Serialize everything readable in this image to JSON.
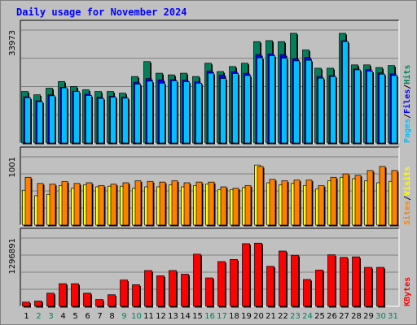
{
  "title": "Daily usage for November 2024",
  "colors": {
    "hits": "#00805c",
    "files": "#0000ff",
    "pages": "#00c0ff",
    "visits": "#ffff00",
    "sites": "#ff8000",
    "kbytes": "#ff0000",
    "weekday": "#000000",
    "weekend": "#00805c",
    "bg": "#c0c0c0"
  },
  "chart_data": [
    {
      "type": "bar",
      "panel": "top",
      "ytick_label": "33973",
      "ymax": 33973,
      "ylabel_parts": [
        "Pages",
        "Files",
        "Hits"
      ],
      "categories": [
        "1",
        "2",
        "3",
        "4",
        "5",
        "6",
        "7",
        "8",
        "9",
        "10",
        "11",
        "12",
        "13",
        "14",
        "15",
        "16",
        "17",
        "18",
        "19",
        "20",
        "21",
        "22",
        "23",
        "24",
        "25",
        "26",
        "27",
        "28",
        "29",
        "30",
        "31"
      ],
      "series": [
        {
          "name": "Hits",
          "values": [
            15500,
            14500,
            16500,
            18500,
            17000,
            16000,
            15500,
            15500,
            15000,
            20000,
            24500,
            21000,
            20500,
            21000,
            20000,
            24000,
            21500,
            23000,
            24000,
            30500,
            30800,
            30500,
            33000,
            28000,
            22500,
            22500,
            33000,
            23500,
            23500,
            22700,
            23300
          ]
        },
        {
          "name": "Files",
          "values": [
            13900,
            12700,
            14500,
            16800,
            15600,
            14700,
            13800,
            14100,
            13800,
            18300,
            19400,
            19000,
            19100,
            18900,
            18400,
            21700,
            20500,
            21500,
            21000,
            26600,
            26800,
            26600,
            25400,
            25800,
            20000,
            20300,
            30800,
            22300,
            22100,
            21100,
            20800
          ]
        },
        {
          "name": "Pages",
          "values": [
            13600,
            12400,
            14200,
            16600,
            15500,
            14300,
            13400,
            13800,
            13500,
            17700,
            18600,
            18000,
            18700,
            18400,
            18000,
            21000,
            19400,
            20900,
            20300,
            25600,
            26300,
            25500,
            24700,
            24900,
            19500,
            20000,
            30500,
            22000,
            21600,
            20700,
            20300
          ]
        }
      ]
    },
    {
      "type": "bar",
      "panel": "middle",
      "ytick_label": "1001",
      "ymax": 1001,
      "ylabel_parts": [
        "Sites",
        "Visits"
      ],
      "categories": [
        "1",
        "2",
        "3",
        "4",
        "5",
        "6",
        "7",
        "8",
        "9",
        "10",
        "11",
        "12",
        "13",
        "14",
        "15",
        "16",
        "17",
        "18",
        "19",
        "20",
        "21",
        "22",
        "23",
        "24",
        "25",
        "26",
        "27",
        "28",
        "29",
        "30",
        "31"
      ],
      "series": [
        {
          "name": "Visits",
          "values": [
            510,
            430,
            450,
            580,
            540,
            590,
            560,
            570,
            570,
            540,
            560,
            560,
            590,
            560,
            580,
            600,
            520,
            520,
            550,
            880,
            620,
            590,
            610,
            580,
            530,
            650,
            700,
            680,
            650,
            620,
            640
          ]
        },
        {
          "name": "Sites",
          "values": [
            700,
            610,
            600,
            640,
            610,
            620,
            580,
            600,
            620,
            650,
            640,
            630,
            650,
            620,
            630,
            630,
            560,
            540,
            580,
            860,
            670,
            650,
            660,
            660,
            580,
            700,
            750,
            730,
            800,
            860,
            800
          ]
        }
      ]
    },
    {
      "type": "bar",
      "panel": "bottom",
      "ytick_label": "1296891",
      "ymax": 1296891,
      "ylabel_parts": [
        "KBytes"
      ],
      "categories": [
        "1",
        "2",
        "3",
        "4",
        "5",
        "6",
        "7",
        "8",
        "9",
        "10",
        "11",
        "12",
        "13",
        "14",
        "15",
        "16",
        "17",
        "18",
        "19",
        "20",
        "21",
        "22",
        "23",
        "24",
        "25",
        "26",
        "27",
        "28",
        "29",
        "30",
        "31"
      ],
      "series": [
        {
          "name": "KBytes",
          "values": [
            80000,
            100000,
            250000,
            430000,
            430000,
            250000,
            130000,
            220000,
            500000,
            410000,
            680000,
            580000,
            680000,
            610000,
            990000,
            540000,
            850000,
            890000,
            1190000,
            1200000,
            760000,
            1050000,
            970000,
            510000,
            690000,
            980000,
            930000,
            940000,
            740000,
            740000,
            0
          ]
        }
      ]
    }
  ],
  "weekend_days": [
    "2",
    "3",
    "9",
    "10",
    "16",
    "17",
    "23",
    "24",
    "30",
    "31"
  ]
}
